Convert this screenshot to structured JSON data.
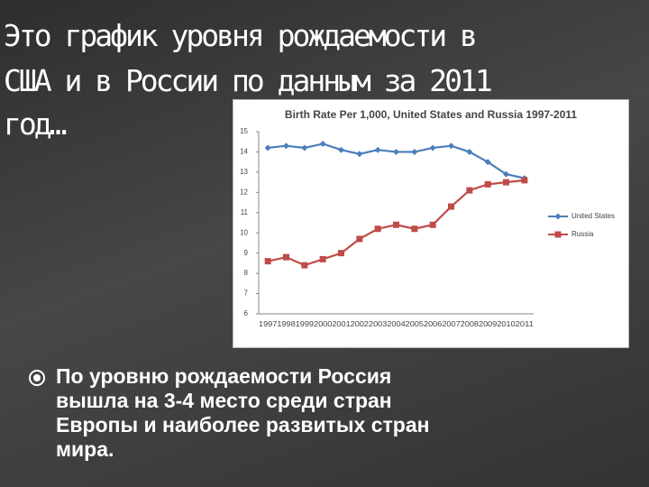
{
  "slide": {
    "title_lines": [
      "Это график уровня рождаемости в",
      "США и в России по данным за 2011",
      "год…"
    ],
    "bullet_lines": [
      "По уровню рождаемости Россия",
      "вышла на 3-4 место среди стран",
      "Европы и наиболее развитых стран",
      "мира."
    ]
  },
  "chart_data": {
    "type": "line",
    "title": "Birth Rate Per 1,000, United States and Russia 1997-2011",
    "categories": [
      "1997",
      "1998",
      "1999",
      "2000",
      "2001",
      "2002",
      "2003",
      "2004",
      "2005",
      "2006",
      "2007",
      "2008",
      "2009",
      "2010",
      "2011"
    ],
    "series": [
      {
        "name": "United States",
        "color": "#4a7ebb",
        "marker": "diamond",
        "values": [
          14.2,
          14.3,
          14.2,
          14.4,
          14.1,
          13.9,
          14.1,
          14.0,
          14.0,
          14.2,
          14.3,
          14.0,
          13.5,
          12.9,
          12.7
        ]
      },
      {
        "name": "Russia",
        "color": "#be4b48",
        "marker": "square",
        "values": [
          8.6,
          8.8,
          8.4,
          8.7,
          9.0,
          9.7,
          10.2,
          10.4,
          10.2,
          10.4,
          11.3,
          12.1,
          12.4,
          12.5,
          12.6
        ]
      }
    ],
    "ylim": [
      6,
      15
    ],
    "yticks": [
      6,
      7,
      8,
      9,
      10,
      11,
      12,
      13,
      14,
      15
    ],
    "legend": "right"
  }
}
